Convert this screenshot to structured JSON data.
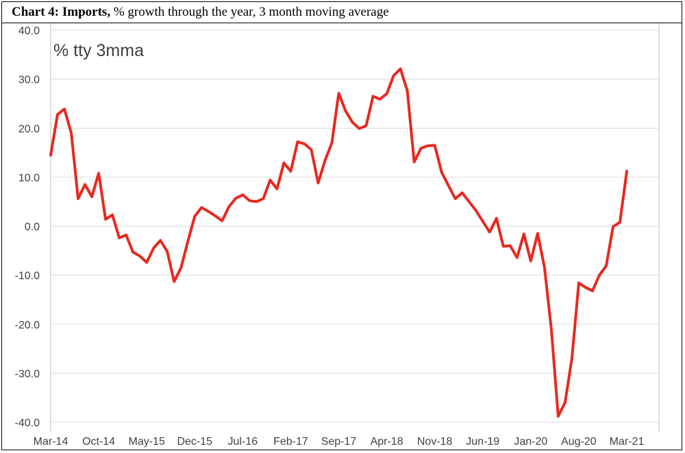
{
  "title_bold": "Chart 4: Imports,",
  "title_rest": " % growth through the year, 3 month moving average",
  "chart_data": {
    "type": "line",
    "title": "Chart 4: Imports, % growth through the year, 3 month moving average",
    "annotation": "% tty 3mma",
    "xlabel": "",
    "ylabel": "",
    "ylim": [
      -40,
      40
    ],
    "yticks": [
      "40.0",
      "30.0",
      "20.0",
      "10.0",
      "0.0",
      "-10.0",
      "-20.0",
      "-30.0",
      "-40.0"
    ],
    "xticks": [
      "Mar-14",
      "Oct-14",
      "May-15",
      "Dec-15",
      "Jul-16",
      "Feb-17",
      "Sep-17",
      "Apr-18",
      "Nov-18",
      "Jun-19",
      "Jan-20",
      "Aug-20",
      "Mar-21"
    ],
    "x_start": "Mar-14",
    "x_end": "Mar-21",
    "grid": "horizontal",
    "line_color": "#e8281f",
    "series": [
      {
        "values": [
          14.5,
          22.8,
          23.9,
          19.0,
          5.6,
          8.5,
          6.0,
          10.8,
          1.4,
          2.3,
          -2.4,
          -1.8,
          -5.3,
          -6.1,
          -7.4,
          -4.5,
          -2.9,
          -5.2,
          -11.3,
          -8.5,
          -3.1,
          2.0,
          3.8,
          3.0,
          2.1,
          1.1,
          4.0,
          5.7,
          6.4,
          5.2,
          5.0,
          5.6,
          9.4,
          7.6,
          12.9,
          11.2,
          17.2,
          16.8,
          15.6,
          8.8,
          13.4,
          17.0,
          27.1,
          23.5,
          21.2,
          19.9,
          20.5,
          26.5,
          25.9,
          27.0,
          30.7,
          32.1,
          27.6,
          13.1,
          15.9,
          16.4,
          16.5,
          11.0,
          8.3,
          5.6,
          6.8,
          5.0,
          3.2,
          1.0,
          -1.2,
          1.6,
          -4.1,
          -4.0,
          -6.4,
          -1.6,
          -7.1,
          -1.5,
          -8.4,
          -21.0,
          -38.8,
          -36.0,
          -27.0,
          -11.6,
          -12.5,
          -13.2,
          -10.0,
          -8.1,
          -0.1,
          0.8,
          11.2
        ]
      }
    ]
  }
}
